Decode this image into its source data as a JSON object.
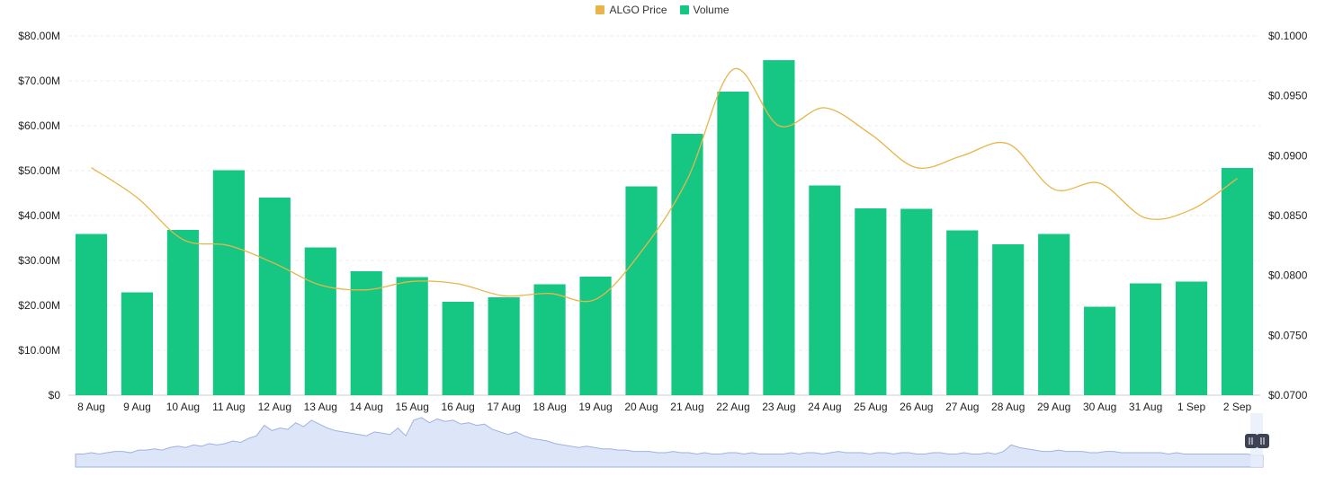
{
  "colors": {
    "price": "#E8B54A",
    "volume": "#16C784",
    "grid": "#EDEDED",
    "navigator_fill": "#DDE6F8",
    "navigator_line": "#9DB3E3",
    "handle": "#3D4354"
  },
  "chart_data": {
    "type": "bar",
    "categories": [
      "8 Aug",
      "9 Aug",
      "10 Aug",
      "11 Aug",
      "12 Aug",
      "13 Aug",
      "14 Aug",
      "15 Aug",
      "16 Aug",
      "17 Aug",
      "18 Aug",
      "19 Aug",
      "20 Aug",
      "21 Aug",
      "22 Aug",
      "23 Aug",
      "24 Aug",
      "25 Aug",
      "26 Aug",
      "27 Aug",
      "28 Aug",
      "29 Aug",
      "30 Aug",
      "31 Aug",
      "1 Sep",
      "2 Sep"
    ],
    "legend": [
      {
        "name": "ALGO Price",
        "color_key": "price"
      },
      {
        "name": "Volume",
        "color_key": "volume"
      }
    ],
    "legend_position": "top-center",
    "grid": true,
    "series": [
      {
        "name": "Volume",
        "type": "bar",
        "axis": "left",
        "values": [
          35.9,
          22.9,
          36.8,
          50.1,
          44.0,
          32.9,
          27.6,
          26.3,
          20.8,
          21.8,
          24.7,
          26.4,
          46.5,
          58.2,
          67.6,
          74.6,
          46.7,
          41.6,
          41.5,
          36.7,
          33.6,
          35.9,
          19.7,
          24.9,
          25.3,
          50.6
        ]
      },
      {
        "name": "ALGO Price",
        "type": "line",
        "axis": "right",
        "values": [
          0.089,
          0.0865,
          0.083,
          0.0825,
          0.081,
          0.0792,
          0.0788,
          0.0795,
          0.0793,
          0.0783,
          0.0785,
          0.078,
          0.082,
          0.088,
          0.0972,
          0.0925,
          0.094,
          0.0918,
          0.089,
          0.09,
          0.091,
          0.0872,
          0.0877,
          0.0848,
          0.0855,
          0.0881
        ]
      }
    ],
    "y_left": {
      "min": 0,
      "max": 80,
      "ticks": [
        0,
        10,
        20,
        30,
        40,
        50,
        60,
        70,
        80
      ],
      "tick_labels": [
        "$0",
        "$10.00M",
        "$20.00M",
        "$30.00M",
        "$40.00M",
        "$50.00M",
        "$60.00M",
        "$70.00M",
        "$80.00M"
      ]
    },
    "y_right": {
      "min": 0.07,
      "max": 0.1,
      "ticks": [
        0.07,
        0.075,
        0.08,
        0.085,
        0.09,
        0.095,
        0.1
      ],
      "tick_labels": [
        "$0.0700",
        "$0.0750",
        "$0.0800",
        "$0.0850",
        "$0.0900",
        "$0.0950",
        "$0.1000"
      ]
    },
    "navigator": {
      "values": [
        10,
        10,
        11,
        10,
        11,
        12,
        12,
        11,
        13,
        13,
        14,
        13,
        15,
        16,
        15,
        17,
        16,
        18,
        17,
        18,
        20,
        19,
        22,
        24,
        32,
        28,
        30,
        29,
        34,
        31,
        36,
        33,
        30,
        28,
        27,
        26,
        25,
        24,
        27,
        26,
        25,
        30,
        24,
        36,
        38,
        34,
        37,
        35,
        36,
        33,
        34,
        32,
        33,
        29,
        27,
        25,
        27,
        24,
        22,
        21,
        20,
        18,
        17,
        16,
        15,
        16,
        15,
        14,
        14,
        13,
        13,
        12,
        12,
        12,
        11,
        11,
        12,
        11,
        11,
        10,
        11,
        10,
        10,
        11,
        11,
        10,
        11,
        10,
        10,
        10,
        10,
        11,
        10,
        11,
        11,
        10,
        11,
        12,
        11,
        11,
        11,
        10,
        11,
        11,
        10,
        11,
        11,
        10,
        10,
        11,
        11,
        10,
        10,
        11,
        10,
        10,
        11,
        10,
        12,
        17,
        15,
        14,
        13,
        12,
        12,
        13,
        12,
        12,
        12,
        11,
        11,
        12,
        12,
        11,
        11,
        11,
        11,
        11,
        11,
        10,
        11,
        10,
        10,
        10,
        10,
        10,
        10,
        10,
        10,
        10,
        9,
        9
      ]
    }
  }
}
